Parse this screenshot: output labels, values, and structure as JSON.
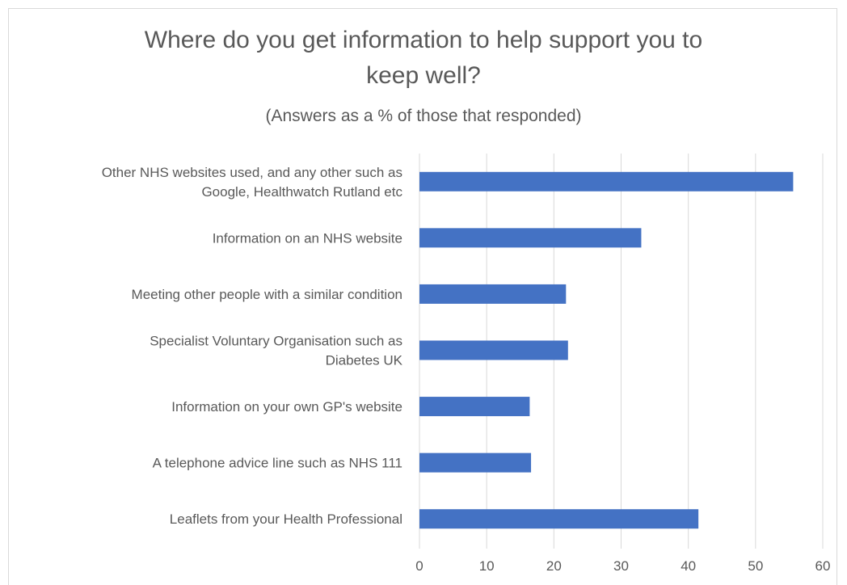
{
  "chart_data": {
    "type": "bar",
    "orientation": "horizontal",
    "title_lines": [
      "Where do you get information to help support you to",
      "keep well?"
    ],
    "subtitle": "(Answers as a % of those that responded)",
    "categories": [
      [
        "Other NHS websites used, and any other such as",
        "Google, Healthwatch Rutland etc"
      ],
      [
        "Information on an NHS website"
      ],
      [
        "Meeting other people with a similar condition"
      ],
      [
        "Specialist Voluntary Organisation such as",
        "Diabetes UK"
      ],
      [
        "Information on your own GP's website"
      ],
      [
        "A telephone advice line such as NHS 111"
      ],
      [
        "Leaflets from your Health Professional"
      ]
    ],
    "values": [
      55.6,
      33,
      21.8,
      22.1,
      16.4,
      16.6,
      41.5
    ],
    "xlim": [
      0,
      60
    ],
    "xticks": [
      "0",
      "10",
      "20",
      "30",
      "40",
      "50",
      "60"
    ],
    "grid": true,
    "legend": "none",
    "bar_color": "#4472c4",
    "grid_color": "#d9d9d9"
  }
}
